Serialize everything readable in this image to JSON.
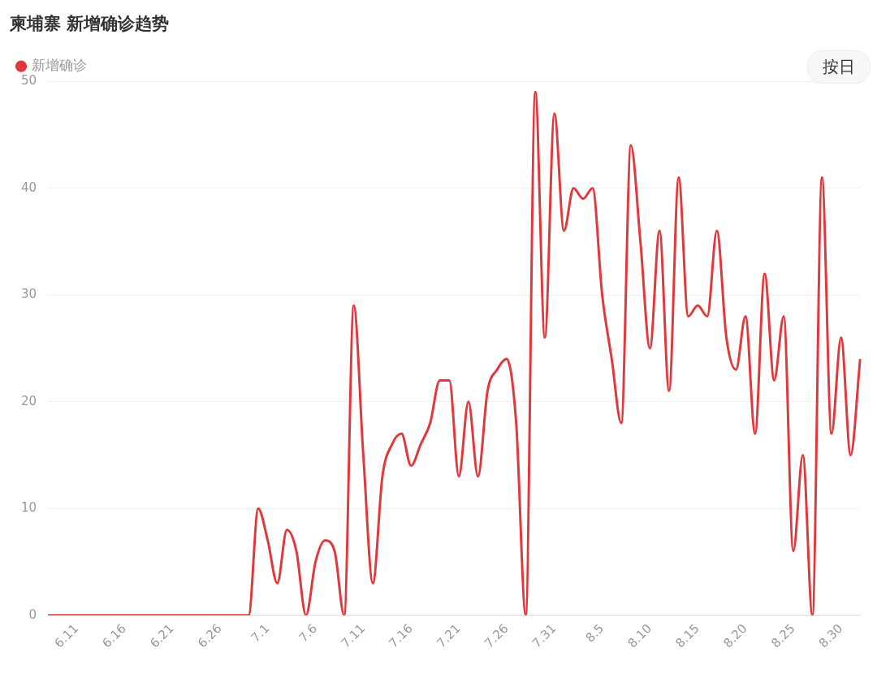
{
  "chart_data": {
    "type": "line",
    "title": "柬埔寨 新增确诊趋势",
    "annotations": [
      "按日"
    ],
    "categories": [
      null,
      null,
      null,
      "6.11",
      null,
      null,
      null,
      null,
      "6.16",
      null,
      null,
      null,
      null,
      "6.21",
      null,
      null,
      null,
      null,
      "6.26",
      null,
      null,
      null,
      null,
      "7.1",
      null,
      null,
      null,
      null,
      "7.6",
      null,
      null,
      null,
      null,
      "7.11",
      null,
      null,
      null,
      null,
      "7.16",
      null,
      null,
      null,
      null,
      "7.21",
      null,
      null,
      null,
      null,
      "7.26",
      null,
      null,
      null,
      null,
      "7.31",
      null,
      null,
      null,
      null,
      "8.5",
      null,
      null,
      null,
      null,
      "8.10",
      null,
      null,
      null,
      null,
      "8.15",
      null,
      null,
      null,
      null,
      "8.20",
      null,
      null,
      null,
      null,
      "8.25",
      null,
      null,
      null,
      null,
      "8.30",
      null,
      null
    ],
    "series": [
      {
        "name": "新增确诊",
        "color": "#e2383c",
        "values": [
          0,
          0,
          0,
          0,
          0,
          0,
          0,
          0,
          0,
          0,
          0,
          0,
          0,
          0,
          0,
          0,
          0,
          0,
          0,
          0,
          0,
          0,
          10,
          7,
          3,
          8,
          6,
          0,
          5,
          7,
          6,
          0,
          29,
          15,
          3,
          13,
          16,
          17,
          14,
          16,
          18,
          22,
          22,
          13,
          20,
          13,
          21,
          23,
          24,
          18,
          0,
          49,
          26,
          47,
          36,
          40,
          39,
          40,
          30,
          24,
          18,
          44,
          35,
          25,
          36,
          21,
          41,
          28,
          29,
          28,
          36,
          26,
          23,
          28,
          17,
          32,
          22,
          28,
          6,
          15,
          0,
          41,
          17,
          26,
          15,
          24
        ]
      }
    ],
    "ylim": [
      0,
      50
    ],
    "yticks": [
      0,
      10,
      20,
      30,
      40,
      50
    ],
    "grid": "y",
    "legend": "top left",
    "marker": "none",
    "line_style": "solid"
  }
}
